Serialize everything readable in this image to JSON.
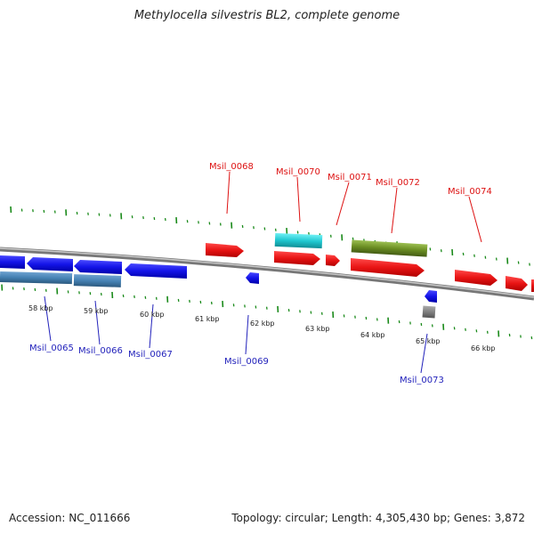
{
  "title": "Methylocella silvestris BL2, complete genome",
  "accession": "Accession: NC_011666",
  "topology": "Topology: circular; Length: 4,305,430 bp; Genes: 3,872",
  "scale_labels": [
    "58 kbp",
    "59 kbp",
    "60 kbp",
    "61 kbp",
    "62 kbp",
    "63 kbp",
    "64 kbp",
    "65 kbp",
    "66 kbp"
  ],
  "gene_labels": {
    "Msil_0065": "Msil_0065",
    "Msil_0066": "Msil_0066",
    "Msil_0067": "Msil_0067",
    "Msil_0068": "Msil_0068",
    "Msil_0069": "Msil_0069",
    "Msil_0070": "Msil_0070",
    "Msil_0071": "Msil_0071",
    "Msil_0072": "Msil_0072",
    "Msil_0073": "Msil_0073",
    "Msil_0074": "Msil_0074"
  },
  "colors": {
    "forward_cds": "#e81414",
    "reverse_cds": "#1414e8",
    "reverse_rna": "#4682b4",
    "cyan_feature": "#20c8d0",
    "olive_feature": "#6b8e23",
    "grey_feature": "#808080",
    "backbone": "#888888",
    "tick": "#1a8a1a",
    "label_red": "#dd1111",
    "label_blue": "#2222bb"
  }
}
